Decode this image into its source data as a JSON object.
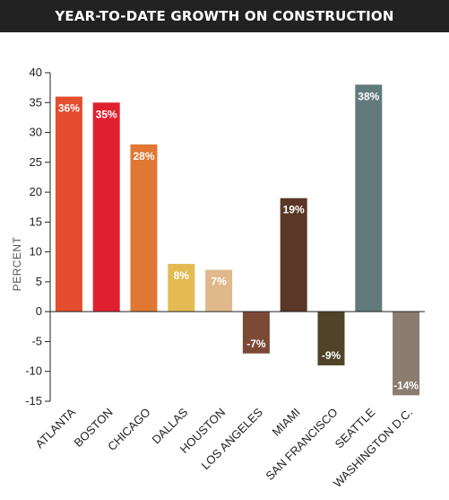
{
  "header": {
    "title": "YEAR-TO-DATE GROWTH ON CONSTRUCTION"
  },
  "chart_data": {
    "type": "bar",
    "title": "YEAR-TO-DATE GROWTH ON CONSTRUCTION",
    "xlabel": "",
    "ylabel": "PERCENT",
    "ylim": [
      -15,
      40
    ],
    "yticks": [
      40,
      35,
      30,
      25,
      20,
      15,
      10,
      5,
      0,
      -5,
      -10,
      -15
    ],
    "grid": false,
    "categories": [
      "ATLANTA",
      "BOSTON",
      "CHICAGO",
      "DALLAS",
      "HOUSTON",
      "LOS ANGELES",
      "MIAMI",
      "SAN FRANCISCO",
      "SEATTLE",
      "WASHINGTON D.C."
    ],
    "values": [
      36,
      35,
      28,
      8,
      7,
      -7,
      19,
      -9,
      38,
      -14
    ],
    "data_labels": [
      "36%",
      "35%",
      "28%",
      "8%",
      "7%",
      "-7%",
      "19%",
      "-9%",
      "38%",
      "-14%"
    ],
    "colors": [
      "#e44d2e",
      "#e0202f",
      "#e07733",
      "#e3bb52",
      "#dfb98c",
      "#7b4a35",
      "#5b3727",
      "#4f4429",
      "#617a7c",
      "#8a7c6e"
    ]
  }
}
